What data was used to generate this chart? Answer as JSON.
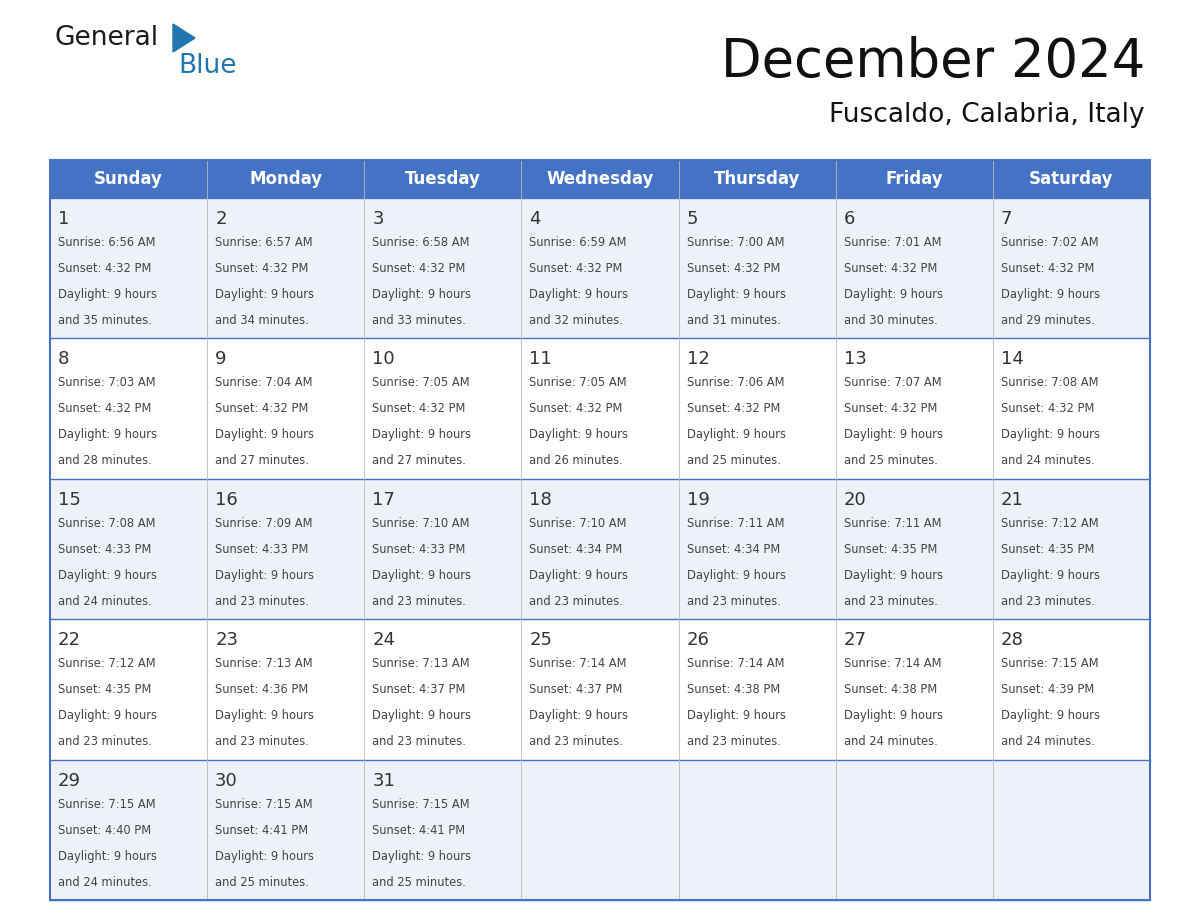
{
  "title": "December 2024",
  "subtitle": "Fuscaldo, Calabria, Italy",
  "header_bg": "#4472C4",
  "header_text_color": "#FFFFFF",
  "header_font_size": 12,
  "day_headers": [
    "Sunday",
    "Monday",
    "Tuesday",
    "Wednesday",
    "Thursday",
    "Friday",
    "Saturday"
  ],
  "cell_bg_odd": "#DDEEFF",
  "cell_bg_even": "#FFFFFF",
  "row_bg_colors": [
    "#E8F0F8",
    "#FFFFFF",
    "#E8F0F8",
    "#FFFFFF",
    "#E8F0F8"
  ],
  "cell_text_color": "#333333",
  "border_color": "#4472C4",
  "row_line_color": "#4472C4",
  "col_line_color": "#BBBBBB",
  "days": [
    {
      "day": 1,
      "col": 0,
      "row": 0,
      "sunrise": "6:56 AM",
      "sunset": "4:32 PM",
      "daylight": "9 hours and 35 minutes."
    },
    {
      "day": 2,
      "col": 1,
      "row": 0,
      "sunrise": "6:57 AM",
      "sunset": "4:32 PM",
      "daylight": "9 hours and 34 minutes."
    },
    {
      "day": 3,
      "col": 2,
      "row": 0,
      "sunrise": "6:58 AM",
      "sunset": "4:32 PM",
      "daylight": "9 hours and 33 minutes."
    },
    {
      "day": 4,
      "col": 3,
      "row": 0,
      "sunrise": "6:59 AM",
      "sunset": "4:32 PM",
      "daylight": "9 hours and 32 minutes."
    },
    {
      "day": 5,
      "col": 4,
      "row": 0,
      "sunrise": "7:00 AM",
      "sunset": "4:32 PM",
      "daylight": "9 hours and 31 minutes."
    },
    {
      "day": 6,
      "col": 5,
      "row": 0,
      "sunrise": "7:01 AM",
      "sunset": "4:32 PM",
      "daylight": "9 hours and 30 minutes."
    },
    {
      "day": 7,
      "col": 6,
      "row": 0,
      "sunrise": "7:02 AM",
      "sunset": "4:32 PM",
      "daylight": "9 hours and 29 minutes."
    },
    {
      "day": 8,
      "col": 0,
      "row": 1,
      "sunrise": "7:03 AM",
      "sunset": "4:32 PM",
      "daylight": "9 hours and 28 minutes."
    },
    {
      "day": 9,
      "col": 1,
      "row": 1,
      "sunrise": "7:04 AM",
      "sunset": "4:32 PM",
      "daylight": "9 hours and 27 minutes."
    },
    {
      "day": 10,
      "col": 2,
      "row": 1,
      "sunrise": "7:05 AM",
      "sunset": "4:32 PM",
      "daylight": "9 hours and 27 minutes."
    },
    {
      "day": 11,
      "col": 3,
      "row": 1,
      "sunrise": "7:05 AM",
      "sunset": "4:32 PM",
      "daylight": "9 hours and 26 minutes."
    },
    {
      "day": 12,
      "col": 4,
      "row": 1,
      "sunrise": "7:06 AM",
      "sunset": "4:32 PM",
      "daylight": "9 hours and 25 minutes."
    },
    {
      "day": 13,
      "col": 5,
      "row": 1,
      "sunrise": "7:07 AM",
      "sunset": "4:32 PM",
      "daylight": "9 hours and 25 minutes."
    },
    {
      "day": 14,
      "col": 6,
      "row": 1,
      "sunrise": "7:08 AM",
      "sunset": "4:32 PM",
      "daylight": "9 hours and 24 minutes."
    },
    {
      "day": 15,
      "col": 0,
      "row": 2,
      "sunrise": "7:08 AM",
      "sunset": "4:33 PM",
      "daylight": "9 hours and 24 minutes."
    },
    {
      "day": 16,
      "col": 1,
      "row": 2,
      "sunrise": "7:09 AM",
      "sunset": "4:33 PM",
      "daylight": "9 hours and 23 minutes."
    },
    {
      "day": 17,
      "col": 2,
      "row": 2,
      "sunrise": "7:10 AM",
      "sunset": "4:33 PM",
      "daylight": "9 hours and 23 minutes."
    },
    {
      "day": 18,
      "col": 3,
      "row": 2,
      "sunrise": "7:10 AM",
      "sunset": "4:34 PM",
      "daylight": "9 hours and 23 minutes."
    },
    {
      "day": 19,
      "col": 4,
      "row": 2,
      "sunrise": "7:11 AM",
      "sunset": "4:34 PM",
      "daylight": "9 hours and 23 minutes."
    },
    {
      "day": 20,
      "col": 5,
      "row": 2,
      "sunrise": "7:11 AM",
      "sunset": "4:35 PM",
      "daylight": "9 hours and 23 minutes."
    },
    {
      "day": 21,
      "col": 6,
      "row": 2,
      "sunrise": "7:12 AM",
      "sunset": "4:35 PM",
      "daylight": "9 hours and 23 minutes."
    },
    {
      "day": 22,
      "col": 0,
      "row": 3,
      "sunrise": "7:12 AM",
      "sunset": "4:35 PM",
      "daylight": "9 hours and 23 minutes."
    },
    {
      "day": 23,
      "col": 1,
      "row": 3,
      "sunrise": "7:13 AM",
      "sunset": "4:36 PM",
      "daylight": "9 hours and 23 minutes."
    },
    {
      "day": 24,
      "col": 2,
      "row": 3,
      "sunrise": "7:13 AM",
      "sunset": "4:37 PM",
      "daylight": "9 hours and 23 minutes."
    },
    {
      "day": 25,
      "col": 3,
      "row": 3,
      "sunrise": "7:14 AM",
      "sunset": "4:37 PM",
      "daylight": "9 hours and 23 minutes."
    },
    {
      "day": 26,
      "col": 4,
      "row": 3,
      "sunrise": "7:14 AM",
      "sunset": "4:38 PM",
      "daylight": "9 hours and 23 minutes."
    },
    {
      "day": 27,
      "col": 5,
      "row": 3,
      "sunrise": "7:14 AM",
      "sunset": "4:38 PM",
      "daylight": "9 hours and 24 minutes."
    },
    {
      "day": 28,
      "col": 6,
      "row": 3,
      "sunrise": "7:15 AM",
      "sunset": "4:39 PM",
      "daylight": "9 hours and 24 minutes."
    },
    {
      "day": 29,
      "col": 0,
      "row": 4,
      "sunrise": "7:15 AM",
      "sunset": "4:40 PM",
      "daylight": "9 hours and 24 minutes."
    },
    {
      "day": 30,
      "col": 1,
      "row": 4,
      "sunrise": "7:15 AM",
      "sunset": "4:41 PM",
      "daylight": "9 hours and 25 minutes."
    },
    {
      "day": 31,
      "col": 2,
      "row": 4,
      "sunrise": "7:15 AM",
      "sunset": "4:41 PM",
      "daylight": "9 hours and 25 minutes."
    }
  ],
  "logo_text_general": "General",
  "logo_text_blue": "Blue",
  "logo_color_general": "#1a1a1a",
  "logo_color_blue": "#2176AE",
  "logo_triangle_color": "#2176AE",
  "title_fontsize": 38,
  "subtitle_fontsize": 19,
  "num_rows": 5,
  "num_cols": 7
}
